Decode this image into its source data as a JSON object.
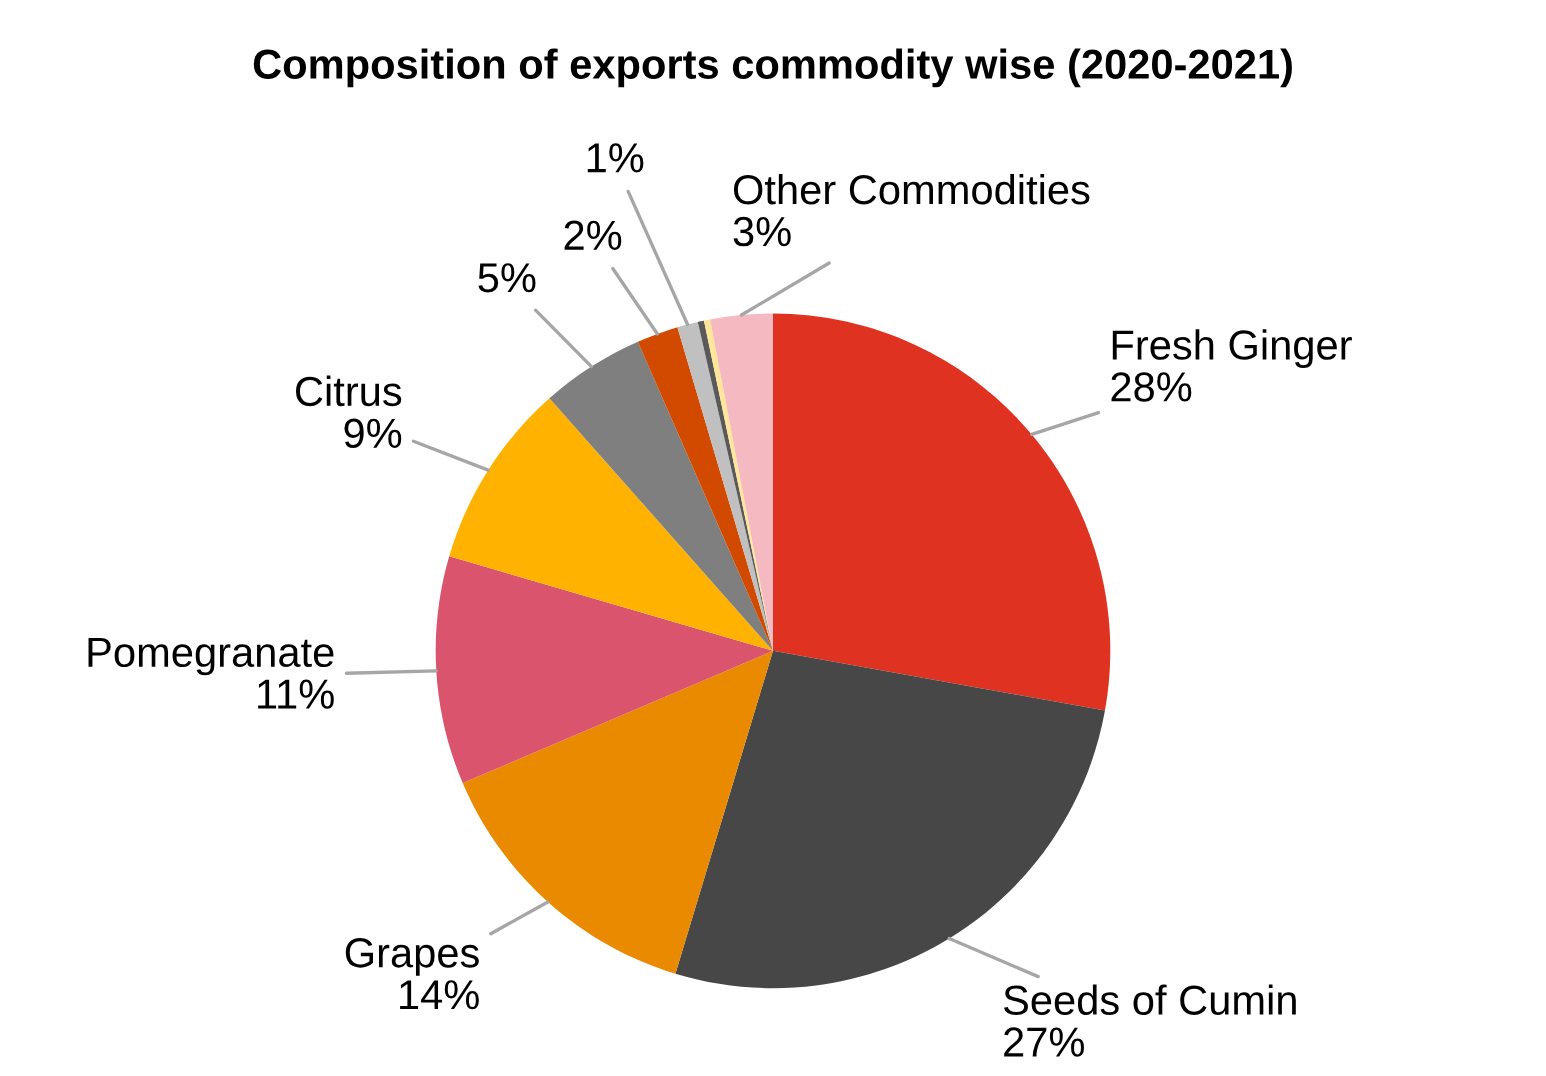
{
  "chart_data": {
    "type": "pie",
    "title": "Composition of exports commodity wise (2020-2021)",
    "categories": [
      "Fresh Ginger",
      "Seeds of Cumin",
      "Grapes",
      "Pomegranate",
      "Citrus",
      null,
      null,
      null,
      null,
      null,
      "Other Commodities"
    ],
    "values": [
      28,
      27,
      14,
      11,
      9,
      5,
      2,
      1,
      0.3,
      0.3,
      3
    ],
    "value_labels": [
      "28%",
      "27%",
      "14%",
      "11%",
      "9%",
      "5%",
      "2%",
      "1%",
      null,
      null,
      "3%"
    ],
    "colors": [
      "#e03220",
      "#474747",
      "#ea8a00",
      "#d9546c",
      "#ffb300",
      "#7f7f7f",
      "#d24a00",
      "#c0c0c0",
      "#595959",
      "#ffe699",
      "#f4b9c1"
    ],
    "legend": false
  }
}
